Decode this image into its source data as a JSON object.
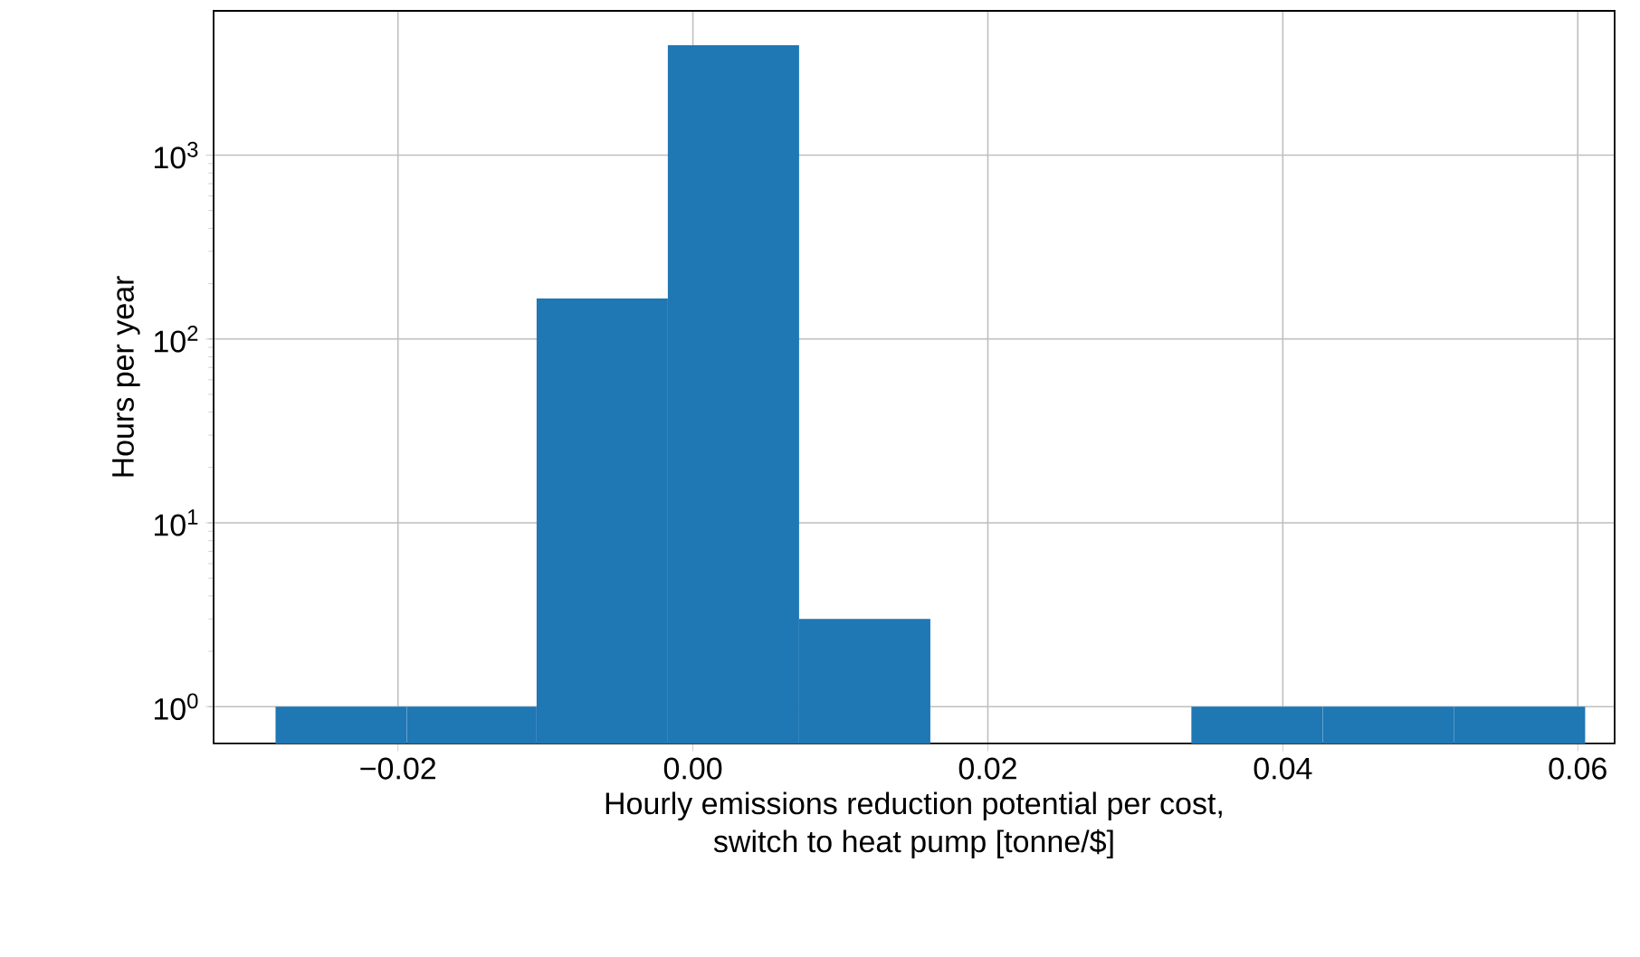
{
  "chart_data": {
    "type": "histogram",
    "xlabel": "Hourly emissions reduction potential per cost,\nswitch to heat pump [tonne/$]",
    "ylabel": "Hours per year",
    "bins": [
      -0.0283,
      -0.0194,
      -0.0106,
      -0.0017,
      0.0072,
      0.0161,
      0.0338,
      0.0427,
      0.0516,
      0.0605
    ],
    "values": [
      1,
      1,
      166,
      3960,
      3,
      null,
      1,
      1,
      1
    ],
    "color": "#1f77b4",
    "log": "y",
    "grid": true,
    "xlim": [
      -0.0325,
      0.0625
    ],
    "xticks": [
      {
        "value": -0.02,
        "label": "−0.02"
      },
      {
        "value": 0.0,
        "label": "0.00"
      },
      {
        "value": 0.02,
        "label": "0.02"
      },
      {
        "value": 0.04,
        "label": "0.04"
      },
      {
        "value": 0.06,
        "label": "0.06"
      }
    ],
    "ylim": [
      0.63,
      6100
    ],
    "yticks": [
      {
        "value": 1,
        "label": "10$^{0}$"
      },
      {
        "value": 10,
        "label": "10$^{1}$"
      },
      {
        "value": 100,
        "label": "10$^{2}$"
      },
      {
        "value": 1000,
        "label": "10$^{3}$"
      }
    ]
  }
}
